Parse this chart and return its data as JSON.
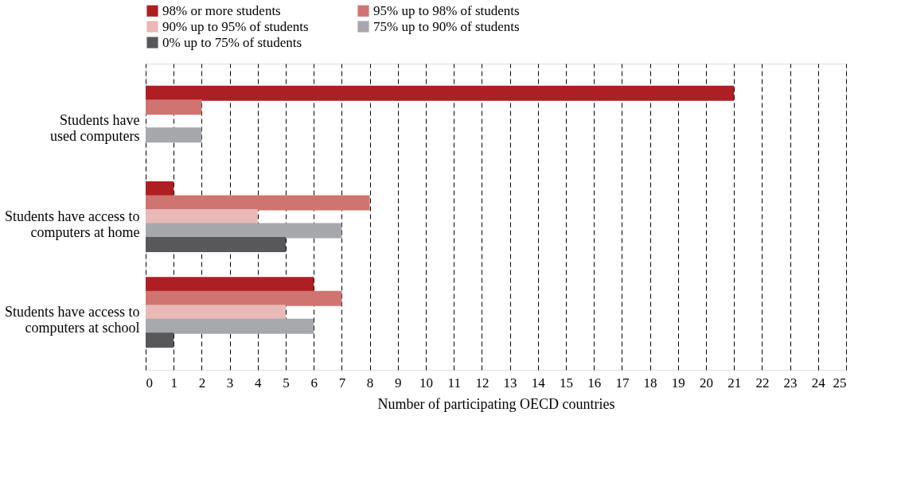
{
  "chart_data": {
    "type": "bar",
    "orientation": "horizontal",
    "xlabel": "Number of participating OECD countries",
    "categories": [
      "Students have\nused computers",
      "Students have access to\ncomputers at home",
      "Students have access to\ncomputers at school"
    ],
    "series": [
      {
        "name": "98% or more students",
        "color": "#ae1f24",
        "values": [
          21,
          1,
          6
        ]
      },
      {
        "name": "95% up to 98% of students",
        "color": "#d07471",
        "values": [
          2,
          8,
          7
        ]
      },
      {
        "name": "90% up to 95% of students",
        "color": "#e9b9b7",
        "values": [
          0,
          4,
          5
        ]
      },
      {
        "name": "75% up to 90% of students",
        "color": "#a7a8ab",
        "values": [
          2,
          7,
          6
        ]
      },
      {
        "name": "0% up to 75% of students",
        "color": "#58585a",
        "values": [
          0,
          5,
          1
        ]
      }
    ],
    "xlim": [
      0,
      25
    ],
    "xticks": [
      0,
      1,
      2,
      3,
      4,
      5,
      6,
      7,
      8,
      9,
      10,
      11,
      12,
      13,
      14,
      15,
      16,
      17,
      18,
      19,
      20,
      21,
      22,
      23,
      24,
      25
    ],
    "grid": "x",
    "legend": "top"
  }
}
